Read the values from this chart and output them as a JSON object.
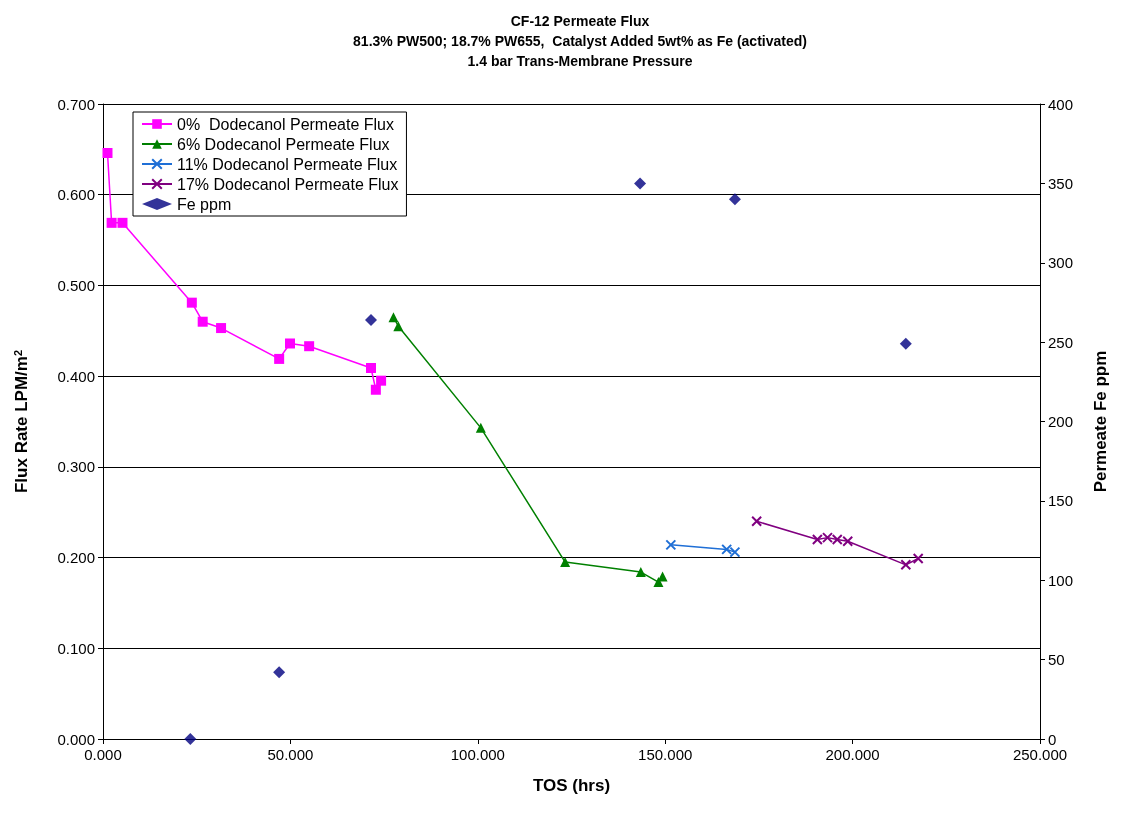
{
  "chart_data": {
    "type": "line",
    "title": "CF-12 Permeate Flux\n81.3% PW500; 18.7% PW655,  Catalyst Added 5wt% as Fe (activated)\n1.4 bar Trans-Membrane Pressure",
    "xlabel": "TOS (hrs)",
    "ylabel": "Flux Rate LPM/m$^{2}$",
    "y2label": "Permeate Fe ppm",
    "xlim": [
      0,
      250
    ],
    "xticks": [
      {
        "value": 0,
        "label": "0.000"
      },
      {
        "value": 50,
        "label": "50.000"
      },
      {
        "value": 100,
        "label": "100.000"
      },
      {
        "value": 150,
        "label": "150.000"
      },
      {
        "value": 200,
        "label": "200.000"
      },
      {
        "value": 250,
        "label": "250.000"
      }
    ],
    "ylim": [
      0,
      0.7
    ],
    "yticks": [
      {
        "value": 0,
        "label": "0.000"
      },
      {
        "value": 0.1,
        "label": "0.100"
      },
      {
        "value": 0.2,
        "label": "0.200"
      },
      {
        "value": 0.3,
        "label": "0.300"
      },
      {
        "value": 0.4,
        "label": "0.400"
      },
      {
        "value": 0.5,
        "label": "0.500"
      },
      {
        "value": 0.6,
        "label": "0.600"
      },
      {
        "value": 0.7,
        "label": "0.700"
      }
    ],
    "y2lim": [
      0,
      400
    ],
    "y2ticks": [
      0,
      50,
      100,
      150,
      200,
      250,
      300,
      350,
      400
    ],
    "grid": "y",
    "legend": "top left",
    "series": [
      {
        "name": "0%  Dodecanol Permeate Flux",
        "marker": "square",
        "color": "#ff00ff",
        "x": [
          1.2,
          2.3,
          5.2,
          23.7,
          26.6,
          31.5,
          47.0,
          49.9,
          55.0,
          71.5,
          72.8,
          74.2
        ],
        "values": [
          0.646,
          0.569,
          0.569,
          0.481,
          0.46,
          0.453,
          0.419,
          0.436,
          0.433,
          0.409,
          0.385,
          0.395
        ]
      },
      {
        "name": "6% Dodecanol Permeate Flux",
        "marker": "triangle",
        "color": "#008000",
        "x": [
          77.5,
          78.8,
          100.8,
          123.3,
          143.5,
          148.2,
          149.3
        ],
        "values": [
          0.465,
          0.455,
          0.343,
          0.195,
          0.184,
          0.173,
          0.179
        ]
      },
      {
        "name": "11% Dodecanol Permeate Flux",
        "marker": "cross",
        "color": "#1f6fd6",
        "x": [
          151.5,
          166.4,
          168.6
        ],
        "values": [
          0.214,
          0.209,
          0.206
        ]
      },
      {
        "name": "17% Dodecanol Permeate Flux",
        "marker": "cross",
        "color": "#800080",
        "x": [
          174.4,
          190.6,
          193.3,
          195.9,
          198.7,
          214.2,
          217.5
        ],
        "values": [
          0.24,
          0.22,
          0.222,
          0.22,
          0.218,
          0.192,
          0.199
        ]
      },
      {
        "name": "Fe ppm",
        "type": "scatter",
        "marker": "diamond",
        "color": "#000080",
        "axis": "y2",
        "x": [
          23.3,
          47.0,
          71.5,
          143.3,
          168.6,
          214.2
        ],
        "values": [
          0,
          42,
          264,
          350,
          340,
          249
        ]
      }
    ]
  }
}
